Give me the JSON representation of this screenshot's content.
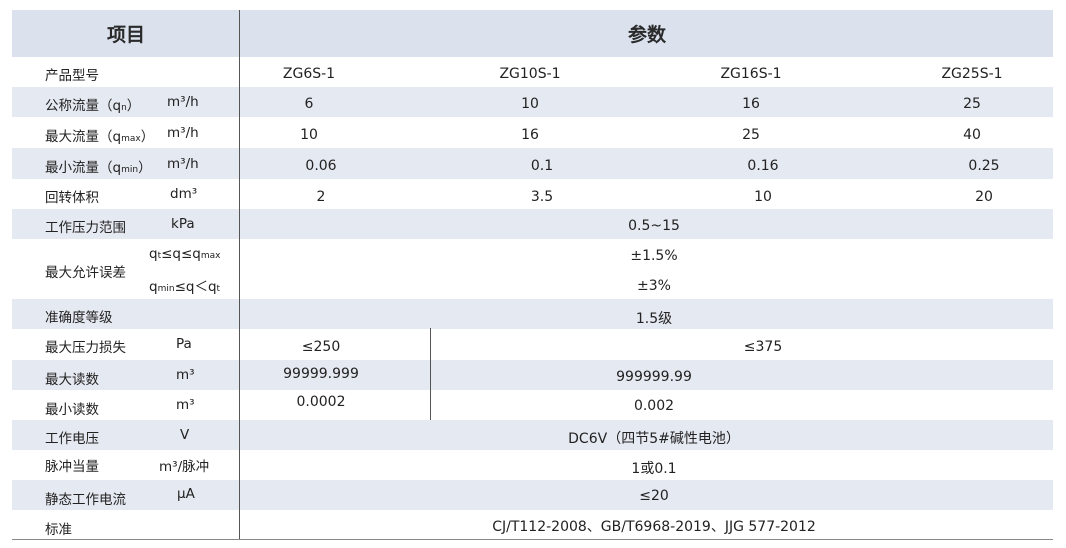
{
  "header": {
    "item": "项目",
    "params": "参数"
  },
  "rows": {
    "model": {
      "label": "产品型号",
      "values": [
        "ZG6S-1",
        "ZG10S-1",
        "ZG16S-1",
        "ZG25S-1"
      ]
    },
    "qn": {
      "label_pre": "公称流量（q",
      "label_sub": "n",
      "label_post": "）",
      "unit": "m³/h",
      "values": [
        "6",
        "10",
        "16",
        "25"
      ]
    },
    "qmax": {
      "label_pre": "最大流量（q",
      "label_sub": "max",
      "label_post": "）",
      "unit": "m³/h",
      "values": [
        "10",
        "16",
        "25",
        "40"
      ]
    },
    "qmin": {
      "label_pre": "最小流量（q",
      "label_sub": "min",
      "label_post": "）",
      "unit": "m³/h",
      "values": [
        "0.06",
        "0.1",
        "0.16",
        "0.25"
      ]
    },
    "volume": {
      "label": "回转体积",
      "unit": "dm³",
      "values": [
        "2",
        "3.5",
        "10",
        "20"
      ]
    },
    "pressure_range": {
      "label": "工作压力范围",
      "unit": "kPa",
      "value": "0.5~15"
    },
    "max_error": {
      "label": "最大允许误差",
      "cond1": {
        "p1": "q",
        "s1": "t",
        "p2": "≤q≤q",
        "s2": "max"
      },
      "cond2": {
        "p1": "q",
        "s1": "min",
        "p2": "≤q＜q",
        "s2": "t"
      },
      "value1": "±1.5%",
      "value2": "±3%"
    },
    "accuracy": {
      "label": "准确度等级",
      "value": "1.5级"
    },
    "pressure_loss": {
      "label": "最大压力损失",
      "unit": "Pa",
      "value_a": "≤250",
      "value_b": "≤375"
    },
    "max_reading": {
      "label": "最大读数",
      "unit": "m³",
      "value_a": "99999.999",
      "value_b": "999999.99"
    },
    "min_reading": {
      "label": "最小读数",
      "unit": "m³",
      "value_a": "0.0002",
      "value_b": "0.002"
    },
    "voltage": {
      "label": "工作电压",
      "unit": "V",
      "value": "DC6V（四节5#碱性电池）"
    },
    "pulse": {
      "label": "脉冲当量",
      "unit": "m³/脉冲",
      "value": "1或0.1"
    },
    "current": {
      "label": "静态工作电流",
      "unit": "μA",
      "value": "≤20"
    },
    "standard": {
      "label": "标准",
      "value": "CJ/T112-2008、GB/T6968-2019、JJG 577-2012"
    }
  }
}
